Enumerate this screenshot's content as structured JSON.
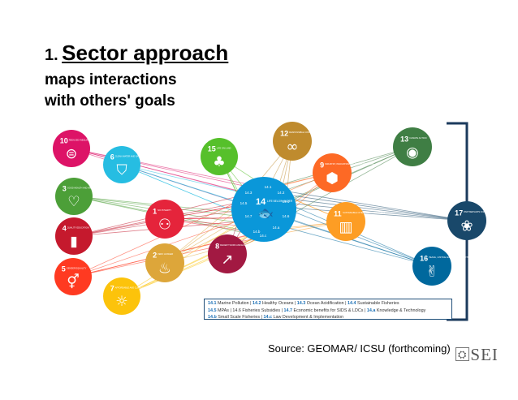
{
  "title": {
    "number": "1.",
    "heading": "Sector approach",
    "line1": "maps interactions",
    "line2": "with others' goals"
  },
  "goals": [
    {
      "id": "g10",
      "num": "10",
      "label": "REDUCED INEQUALITIES",
      "color": "#dd1367",
      "glyph": "⊜"
    },
    {
      "id": "g6",
      "num": "6",
      "label": "CLEAN WATER AND SANITATION",
      "color": "#26bde2",
      "glyph": "⛉"
    },
    {
      "id": "g15",
      "num": "15",
      "label": "LIFE ON LAND",
      "color": "#56c02b",
      "glyph": "♣"
    },
    {
      "id": "g12",
      "num": "12",
      "label": "RESPONSIBLE CONSUMPTION AND PRODUCTION",
      "color": "#bf8b2e",
      "glyph": "∞"
    },
    {
      "id": "g13",
      "num": "13",
      "label": "CLIMATE ACTION",
      "color": "#3f7e44",
      "glyph": "◉"
    },
    {
      "id": "g3",
      "num": "3",
      "label": "GOOD HEALTH AND WELL-BEING",
      "color": "#4c9f38",
      "glyph": "♡"
    },
    {
      "id": "g9",
      "num": "9",
      "label": "INDUSTRY, INNOVATION AND INFRASTRUCTURE",
      "color": "#fd6925",
      "glyph": "⬢"
    },
    {
      "id": "g4",
      "num": "4",
      "label": "QUALITY EDUCATION",
      "color": "#c5192d",
      "glyph": "▮"
    },
    {
      "id": "g1",
      "num": "1",
      "label": "NO POVERTY",
      "color": "#e5243b",
      "glyph": "⚇"
    },
    {
      "id": "g11",
      "num": "11",
      "label": "SUSTAINABLE CITIES AND COMMUNITIES",
      "color": "#fd9d24",
      "glyph": "▥"
    },
    {
      "id": "g17",
      "num": "17",
      "label": "PARTNERSHIPS FOR THE GOALS",
      "color": "#19486a",
      "glyph": "❀"
    },
    {
      "id": "g8",
      "num": "8",
      "label": "DECENT WORK AND ECONOMIC GROWTH",
      "color": "#a21942",
      "glyph": "↗"
    },
    {
      "id": "g5",
      "num": "5",
      "label": "GENDER EQUALITY",
      "color": "#ff3a21",
      "glyph": "⚥"
    },
    {
      "id": "g2",
      "num": "2",
      "label": "ZERO HUNGER",
      "color": "#dda63a",
      "glyph": "♨"
    },
    {
      "id": "g16",
      "num": "16",
      "label": "PEACE, JUSTICE AND STRONG INSTITUTIONS",
      "color": "#00689d",
      "glyph": "✌"
    },
    {
      "id": "g7",
      "num": "7",
      "label": "AFFORDABLE AND CLEAN ENERGY",
      "color": "#fcc30b",
      "glyph": "☼"
    }
  ],
  "center": {
    "num": "14",
    "label": "LIFE BELOW WATER",
    "color": "#0a97d9",
    "targets": [
      "14.1",
      "14.2",
      "14.3",
      "14.4",
      "14.5",
      "14.6",
      "14.7",
      "14.a",
      "14.b",
      "14.c"
    ]
  },
  "legend": {
    "row1": [
      {
        "code": "14.1",
        "text": " Marine Pollution  |  "
      },
      {
        "code": "14.2",
        "text": " Healthy Oceans  |  "
      },
      {
        "code": "14.3",
        "text": " Ocean Acidification  |  "
      },
      {
        "code": "14.4",
        "text": " Sustainable Fisheries"
      }
    ],
    "row2": [
      {
        "code": "14.5",
        "text": " MPAs  |  14.6 Fisheries Subsidies  |  "
      },
      {
        "code": "14.7",
        "text": " Economic benefits for SIDS & LDCs  |  "
      },
      {
        "code": "14.a",
        "text": " Knowledge & Technology"
      }
    ],
    "row3": [
      {
        "code": "14.b",
        "text": " Small Scale Fisheries  |  "
      },
      {
        "code": "14.c",
        "text": " Law Development & Implementation"
      }
    ]
  },
  "source": "Source:  GEOMAR/ ICSU (forthcoming)",
  "logo": "SEI"
}
